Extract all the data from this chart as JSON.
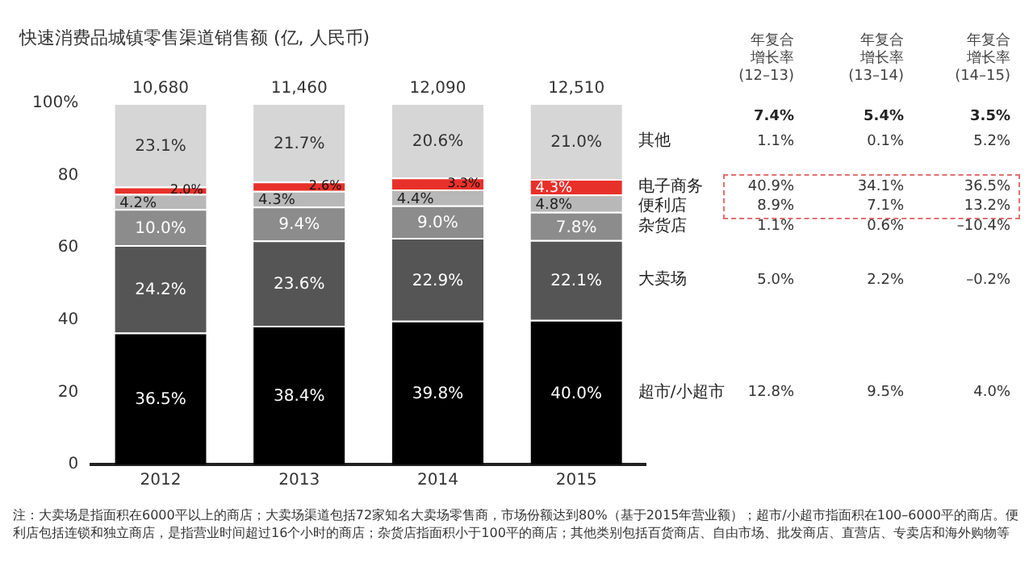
{
  "chart_data": {
    "type": "bar",
    "stacked": true,
    "title": "快速消费品城镇零售渠道销售额 (亿, 人民币)",
    "categories": [
      "2012",
      "2013",
      "2014",
      "2015"
    ],
    "series": [
      {
        "name": "超市/小超市",
        "color": "#000000",
        "values": [
          36.5,
          38.4,
          39.8,
          40.0
        ],
        "value_labels": [
          "36.5%",
          "38.4%",
          "39.8%",
          "40.0%"
        ]
      },
      {
        "name": "大卖场",
        "color": "#555555",
        "values": [
          24.2,
          23.6,
          22.9,
          22.1
        ],
        "value_labels": [
          "24.2%",
          "23.6%",
          "22.9%",
          "22.1%"
        ]
      },
      {
        "name": "杂货店",
        "color": "#8c8c8c",
        "values": [
          10.0,
          9.4,
          9.0,
          7.8
        ],
        "value_labels": [
          "10.0%",
          "9.4%",
          "9.0%",
          "7.8%"
        ]
      },
      {
        "name": "便利店",
        "color": "#b8b8b8",
        "values": [
          4.2,
          4.3,
          4.4,
          4.8
        ],
        "value_labels": [
          "4.2%",
          "4.3%",
          "4.4%",
          "4.8%"
        ]
      },
      {
        "name": "电子商务",
        "color": "#e8302a",
        "values": [
          2.0,
          2.6,
          3.3,
          4.3
        ],
        "value_labels": [
          "2.0%",
          "2.6%",
          "3.3%",
          "4.3%"
        ]
      },
      {
        "name": "其他",
        "color": "#d6d6d6",
        "values": [
          23.1,
          21.7,
          20.6,
          21.0
        ],
        "value_labels": [
          "23.1%",
          "21.7%",
          "20.6%",
          "21.0%"
        ]
      }
    ],
    "ylim": [
      0,
      100
    ],
    "yticks": [
      0,
      20,
      40,
      60,
      80,
      {
        "value": 100,
        "label": "100%"
      }
    ],
    "grid": false,
    "legend": false,
    "annotations": [
      {
        "text": "10,680",
        "x": "2012",
        "y": 100
      },
      {
        "text": "11,460",
        "x": "2013",
        "y": 100
      },
      {
        "text": "12,090",
        "x": "2014",
        "y": 100
      },
      {
        "text": "12,510",
        "x": "2015",
        "y": 100
      },
      "年复合增长率 (12–13)",
      "年复合增长率 (13–14)",
      "年复合增长率 (14–15)",
      "7.4%",
      "5.4%",
      "3.5%",
      "1.1%",
      "0.1%",
      "5.2%",
      "40.9%",
      "34.1%",
      "36.5%",
      "8.9%",
      "7.1%",
      "13.2%",
      "1.1%",
      "0.6%",
      "–10.4%",
      "5.0%",
      "2.2%",
      "–0.2%",
      "12.8%",
      "9.5%",
      "4.0%",
      "注：大卖场是指面积在6000平以上的商店；大卖场渠道包括72家知名大卖场零售商，市场份额达到80%（基于2015年营业额）；超市/小超市指面积在100–6000平的商店。便利店包括连锁和独立商店，是指营业时间超过16个小时的商店；杂货店指面积小于100平的商店；其他类别包括百货商店、自由市场、批发商店、直营店、专卖店和海外购物等"
    ]
  }
}
